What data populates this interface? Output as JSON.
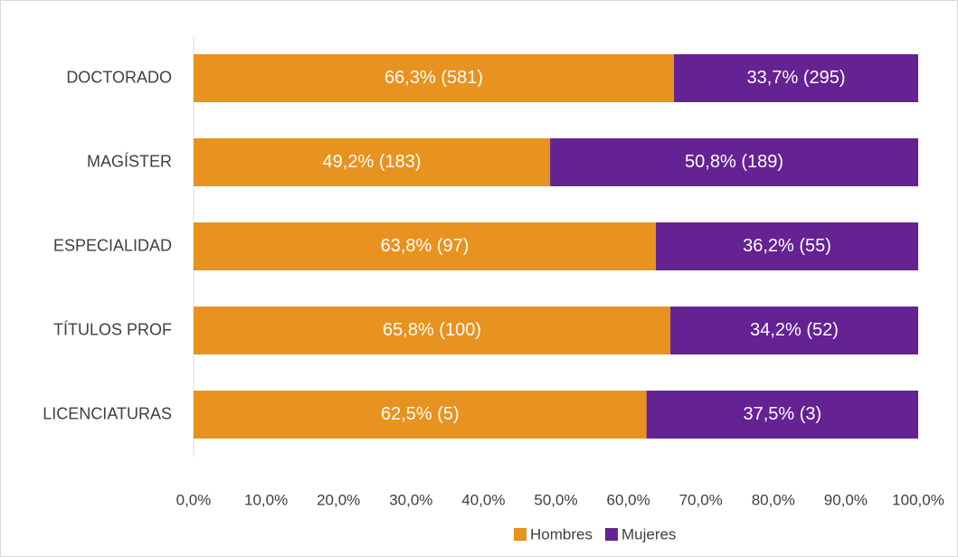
{
  "chart_data": {
    "type": "bar",
    "orientation": "horizontal",
    "stacked": true,
    "categories": [
      "DOCTORADO",
      "MAGÍSTER",
      "ESPECIALIDAD",
      "TÍTULOS PROF",
      "LICENCIATURAS"
    ],
    "series": [
      {
        "name": "Hombres",
        "color": "#e8921f",
        "values": [
          66.3,
          49.2,
          63.8,
          65.8,
          62.5
        ],
        "value_labels": [
          "66,3% (581)",
          "49,2% (183)",
          "63,8% (97)",
          "65,8% (100)",
          "62,5% (5)"
        ]
      },
      {
        "name": "Mujeres",
        "color": "#652293",
        "values": [
          33.7,
          50.8,
          36.2,
          34.2,
          37.5
        ],
        "value_labels": [
          "33,7% (295)",
          "50,8% (189)",
          "36,2% (55)",
          "34,2% (52)",
          "37,5% (3)"
        ]
      }
    ],
    "xlim": [
      0,
      100
    ],
    "xticks": [
      {
        "value": 0,
        "label": "0,0%"
      },
      {
        "value": 10,
        "label": "10,0%"
      },
      {
        "value": 20,
        "label": "20,0%"
      },
      {
        "value": 30,
        "label": "30,0%"
      },
      {
        "value": 40,
        "label": "40,0%"
      },
      {
        "value": 50,
        "label": "50,0%"
      },
      {
        "value": 60,
        "label": "60,0%"
      },
      {
        "value": 70,
        "label": "70,0%"
      },
      {
        "value": 80,
        "label": "80,0%"
      },
      {
        "value": 90,
        "label": "90,0%"
      },
      {
        "value": 100,
        "label": "100,0%"
      }
    ],
    "legend": "bottom"
  }
}
